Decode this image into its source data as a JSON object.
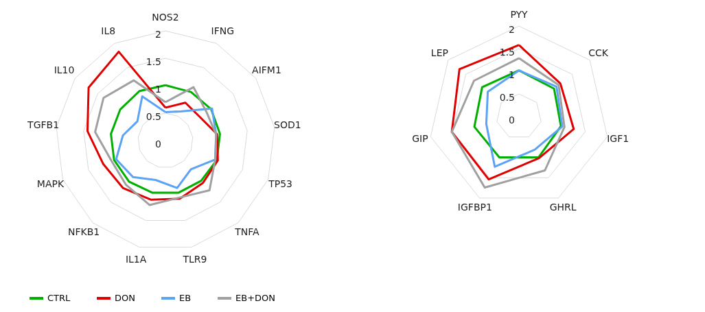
{
  "chart_data": [
    {
      "type": "radar",
      "categories": [
        "NOS2",
        "IFNG",
        "AIFM1",
        "SOD1",
        "TP53",
        "TNFA",
        "TLR9",
        "IL1A",
        "NFKB1",
        "MAPK",
        "TGFB1",
        "IL10",
        "IL8"
      ],
      "ylim": [
        0,
        2
      ],
      "yticks": [
        0,
        0.5,
        1,
        1.5,
        2
      ],
      "grid": true,
      "legend": "bottom",
      "series": [
        {
          "name": "CTRL",
          "color": "#00b000",
          "values": [
            1.01,
            1.0,
            1.01,
            1.0,
            1.0,
            0.98,
            0.98,
            0.98,
            1.0,
            1.0,
            1.0,
            1.0,
            1.02
          ]
        },
        {
          "name": "DON",
          "color": "#e00000",
          "values": [
            0.6,
            0.78,
            0.76,
            0.95,
            1.02,
            1.03,
            1.09,
            1.11,
            1.16,
            1.21,
            1.43,
            1.7,
            1.83
          ]
        },
        {
          "name": "EB",
          "color": "#5ba3f5",
          "values": [
            0.52,
            0.6,
            1.03,
            0.93,
            0.97,
            0.7,
            0.89,
            0.74,
            0.89,
            0.96,
            0.78,
            0.62,
            0.91
          ]
        },
        {
          "name": "EB+DON",
          "color": "#a0a0a0",
          "values": [
            0.7,
            1.1,
            0.91,
            0.93,
            0.97,
            1.21,
            1.07,
            1.21,
            1.08,
            1.05,
            1.29,
            1.37,
            1.24
          ]
        }
      ]
    },
    {
      "type": "radar",
      "categories": [
        "PYY",
        "CCK",
        "IGF1",
        "GHRL",
        "IGFBP1",
        "GIP",
        "LEP"
      ],
      "ylim": [
        0,
        2
      ],
      "yticks": [
        0,
        0.5,
        1,
        1.5,
        2
      ],
      "grid": true,
      "legend": "bottom",
      "series": [
        {
          "name": "CTRL",
          "color": "#00b000",
          "values": [
            1.02,
            0.99,
            0.95,
            1.0,
            1.0,
            1.01,
            1.04
          ]
        },
        {
          "name": "DON",
          "color": "#e00000",
          "values": [
            1.58,
            1.17,
            1.24,
            1.02,
            1.54,
            1.52,
            1.68
          ]
        },
        {
          "name": "EB",
          "color": "#5ba3f5",
          "values": [
            1.02,
            1.06,
            0.98,
            0.81,
            1.23,
            0.74,
            0.88
          ]
        },
        {
          "name": "EB+DON",
          "color": "#a0a0a0",
          "values": [
            1.29,
            1.12,
            1.03,
            1.32,
            1.74,
            1.52,
            1.27
          ]
        }
      ]
    }
  ]
}
